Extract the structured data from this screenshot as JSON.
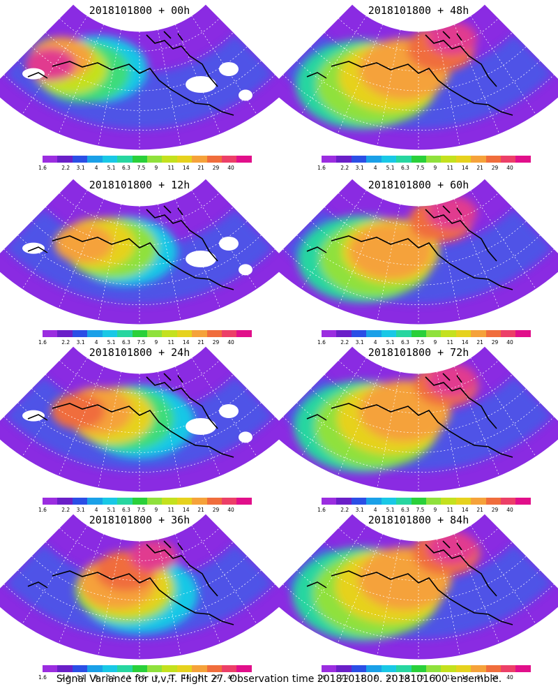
{
  "panels": [
    {
      "title": "2018101800 + 00h",
      "blobs": [
        [
          "#e13b8f",
          0.18,
          0.42,
          0.3
        ],
        [
          "#f5a23a",
          0.22,
          0.38,
          0.38
        ],
        [
          "#c4e11e",
          0.25,
          0.45,
          0.45
        ],
        [
          "#3cdc7a",
          0.3,
          0.47,
          0.55
        ],
        [
          "#19c8e6",
          0.35,
          0.45,
          0.6
        ]
      ],
      "gaps": true
    },
    {
      "title": "2018101800 + 48h",
      "blobs": [
        [
          "#e13b8f",
          0.62,
          0.25,
          0.3
        ],
        [
          "#f06d3c",
          0.58,
          0.32,
          0.4
        ],
        [
          "#f5a23a",
          0.45,
          0.45,
          0.55
        ],
        [
          "#e6d21e",
          0.4,
          0.5,
          0.62
        ],
        [
          "#8fe13c",
          0.35,
          0.55,
          0.72
        ],
        [
          "#27d6a0",
          0.3,
          0.55,
          0.8
        ]
      ],
      "gaps": false
    },
    {
      "title": "2018101800 + 12h",
      "blobs": [
        [
          "#f5a23a",
          0.3,
          0.45,
          0.35
        ],
        [
          "#e6d21e",
          0.35,
          0.45,
          0.45
        ],
        [
          "#8fe13c",
          0.4,
          0.48,
          0.55
        ],
        [
          "#19c8e6",
          0.45,
          0.5,
          0.62
        ]
      ],
      "gaps": true
    },
    {
      "title": "2018101800 + 60h",
      "blobs": [
        [
          "#e13b8f",
          0.62,
          0.25,
          0.3
        ],
        [
          "#f06d3c",
          0.58,
          0.3,
          0.38
        ],
        [
          "#f5a23a",
          0.4,
          0.5,
          0.5
        ],
        [
          "#e6d21e",
          0.4,
          0.5,
          0.58
        ],
        [
          "#8fe13c",
          0.35,
          0.55,
          0.68
        ],
        [
          "#27d6a0",
          0.3,
          0.55,
          0.78
        ]
      ],
      "gaps": false
    },
    {
      "title": "2018101800 + 24h",
      "blobs": [
        [
          "#f06d3c",
          0.28,
          0.45,
          0.32
        ],
        [
          "#f5a23a",
          0.35,
          0.45,
          0.42
        ],
        [
          "#e6d21e",
          0.4,
          0.48,
          0.5
        ],
        [
          "#3cdc7a",
          0.45,
          0.5,
          0.58
        ],
        [
          "#19c8e6",
          0.5,
          0.52,
          0.66
        ]
      ],
      "gaps": true
    },
    {
      "title": "2018101800 + 72h",
      "blobs": [
        [
          "#e13b8f",
          0.62,
          0.25,
          0.3
        ],
        [
          "#f06d3c",
          0.6,
          0.28,
          0.38
        ],
        [
          "#f5a23a",
          0.45,
          0.45,
          0.55
        ],
        [
          "#e6d21e",
          0.4,
          0.5,
          0.64
        ],
        [
          "#8fe13c",
          0.35,
          0.55,
          0.74
        ],
        [
          "#27d6a0",
          0.3,
          0.55,
          0.82
        ]
      ],
      "gaps": false
    },
    {
      "title": "2018101800 + 36h",
      "blobs": [
        [
          "#e13b8f",
          0.55,
          0.3,
          0.28
        ],
        [
          "#f06d3c",
          0.45,
          0.4,
          0.36
        ],
        [
          "#f5a23a",
          0.42,
          0.48,
          0.46
        ],
        [
          "#e6d21e",
          0.45,
          0.5,
          0.54
        ],
        [
          "#8fe13c",
          0.45,
          0.52,
          0.6
        ],
        [
          "#19c8e6",
          0.5,
          0.55,
          0.7
        ]
      ],
      "gaps": false
    },
    {
      "title": "2018101800 + 84h",
      "blobs": [
        [
          "#e13b8f",
          0.62,
          0.25,
          0.3
        ],
        [
          "#f06d3c",
          0.6,
          0.28,
          0.4
        ],
        [
          "#f5a23a",
          0.45,
          0.45,
          0.56
        ],
        [
          "#e6d21e",
          0.4,
          0.5,
          0.66
        ],
        [
          "#8fe13c",
          0.35,
          0.55,
          0.76
        ],
        [
          "#27d6a0",
          0.3,
          0.55,
          0.84
        ]
      ],
      "gaps": false
    }
  ],
  "colorbar": {
    "colors": [
      "#9b2de0",
      "#6a1fc8",
      "#2b4ee6",
      "#1aa0e8",
      "#19c8e6",
      "#27d6a0",
      "#2ad03a",
      "#8fe13c",
      "#c4e11e",
      "#e6d21e",
      "#f5a23a",
      "#f06d3c",
      "#ec3f68",
      "#e10f8a"
    ],
    "labels": [
      "1.6",
      "2.2",
      "3.1",
      "4",
      "5.1",
      "6.3",
      "7.5",
      "9",
      "11",
      "14",
      "21",
      "29",
      "40"
    ]
  },
  "footer": "Signal Variance for u,v,T. Flight 27. Observation time 2018101800. 2018101600 ensemble."
}
